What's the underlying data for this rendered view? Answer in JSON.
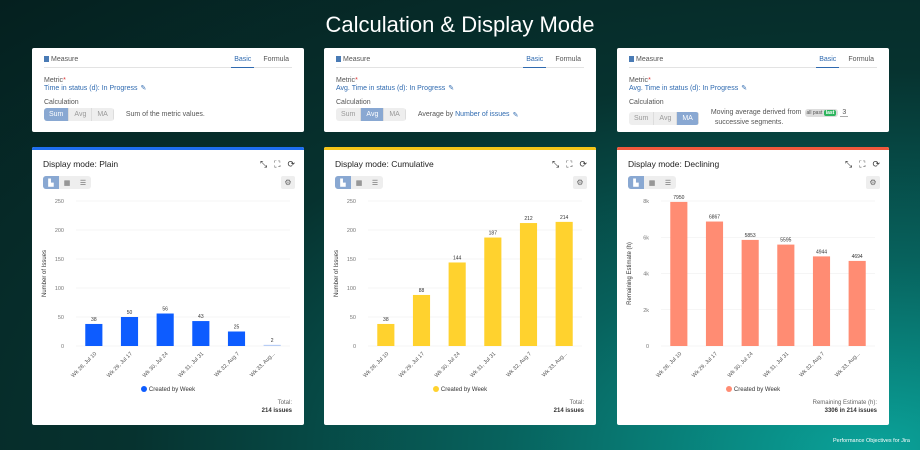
{
  "page_title": "Calculation & Display Mode",
  "credit": "Performance Objectives for Jira",
  "measure_panels": [
    {
      "header": "Measure",
      "tabs": [
        "Basic",
        "Formula"
      ],
      "active_tab": "Basic",
      "metric_label": "Metric",
      "metric_value": "Time in status (d): In Progress",
      "calc_label": "Calculation",
      "options": [
        "Sum",
        "Avg",
        "MA"
      ],
      "selected": "Sum",
      "description": "Sum of the metric values."
    },
    {
      "header": "Measure",
      "tabs": [
        "Basic",
        "Formula"
      ],
      "active_tab": "Basic",
      "metric_label": "Metric",
      "metric_value": "Avg. Time in status (d): In Progress",
      "calc_label": "Calculation",
      "options": [
        "Sum",
        "Avg",
        "MA"
      ],
      "selected": "Avg",
      "description": "Average by",
      "description_link": "Number of issues"
    },
    {
      "header": "Measure",
      "tabs": [
        "Basic",
        "Formula"
      ],
      "active_tab": "Basic",
      "metric_label": "Metric",
      "metric_value": "Avg. Time in status (d): In Progress",
      "calc_label": "Calculation",
      "options": [
        "Sum",
        "Avg",
        "MA"
      ],
      "selected": "MA",
      "description": "Moving average derived from",
      "toggle": [
        "all past",
        "last"
      ],
      "toggle_selected": "last",
      "segments": "3",
      "description_end": "successive segments."
    }
  ],
  "chart_panels": [
    {
      "title": "Display mode: Plain",
      "accent": "#1e6ef0",
      "footer_label": "Total:",
      "footer_value": "214 issues"
    },
    {
      "title": "Display mode: Cumulative",
      "accent": "#f5c518",
      "footer_label": "Total:",
      "footer_value": "214 issues"
    },
    {
      "title": "Display mode: Declining",
      "accent": "#f0583c",
      "footer_label": "Remaining Estimate (h):",
      "footer_value": "3306 in 214 issues"
    }
  ],
  "chart_data": [
    {
      "type": "bar",
      "categories": [
        "Wk 28, Jul 10",
        "Wk 29, Jul 17",
        "Wk 30, Jul 24",
        "Wk 31, Jul 31",
        "Wk 32, Aug 7",
        "Wk 33, Aug..."
      ],
      "values": [
        38,
        50,
        56,
        43,
        25,
        2
      ],
      "data_labels": [
        "38",
        "50",
        "56",
        "43",
        "25",
        "2"
      ],
      "ylabel": "Number of Issues",
      "ylim": [
        0,
        250
      ],
      "yticks": [
        "0",
        "50",
        "100",
        "150",
        "200",
        "250"
      ],
      "tick_values": [
        0,
        50,
        100,
        150,
        200,
        250
      ],
      "series_name": "Created by Week",
      "color": "#0d5cff",
      "last_color": "#b7cdf5",
      "grid": true,
      "legend": "bottom"
    },
    {
      "type": "bar",
      "categories": [
        "Wk 28, Jul 10",
        "Wk 29, Jul 17",
        "Wk 30, Jul 24",
        "Wk 31, Jul 31",
        "Wk 32, Aug 7",
        "Wk 33, Aug..."
      ],
      "values": [
        38,
        88,
        144,
        187,
        212,
        214
      ],
      "data_labels": [
        "38",
        "88",
        "144",
        "187",
        "212",
        "214"
      ],
      "ylabel": "Number of Issues",
      "ylim": [
        0,
        250
      ],
      "yticks": [
        "0",
        "50",
        "100",
        "150",
        "200",
        "250"
      ],
      "tick_values": [
        0,
        50,
        100,
        150,
        200,
        250
      ],
      "series_name": "Created by Week",
      "color": "#ffd22e",
      "grid": true,
      "legend": "bottom"
    },
    {
      "type": "bar",
      "categories": [
        "Wk 28, Jul 10",
        "Wk 29, Jul 17",
        "Wk 30, Jul 24",
        "Wk 31, Jul 31",
        "Wk 32, Aug 7",
        "Wk 33, Aug..."
      ],
      "values": [
        7950,
        6867,
        5853,
        5595,
        4944,
        4694
      ],
      "data_labels": [
        "7950",
        "6867",
        "5853",
        "5595",
        "4944",
        "4694"
      ],
      "ylabel": "Remaining Estimate (h)",
      "ylim": [
        0,
        8000
      ],
      "yticks": [
        "0",
        "2k",
        "4k",
        "6k",
        "8k"
      ],
      "tick_values": [
        0,
        2000,
        4000,
        6000,
        8000
      ],
      "series_name": "Created by Week",
      "color": "#ff8c73",
      "grid": true,
      "legend": "bottom"
    }
  ]
}
